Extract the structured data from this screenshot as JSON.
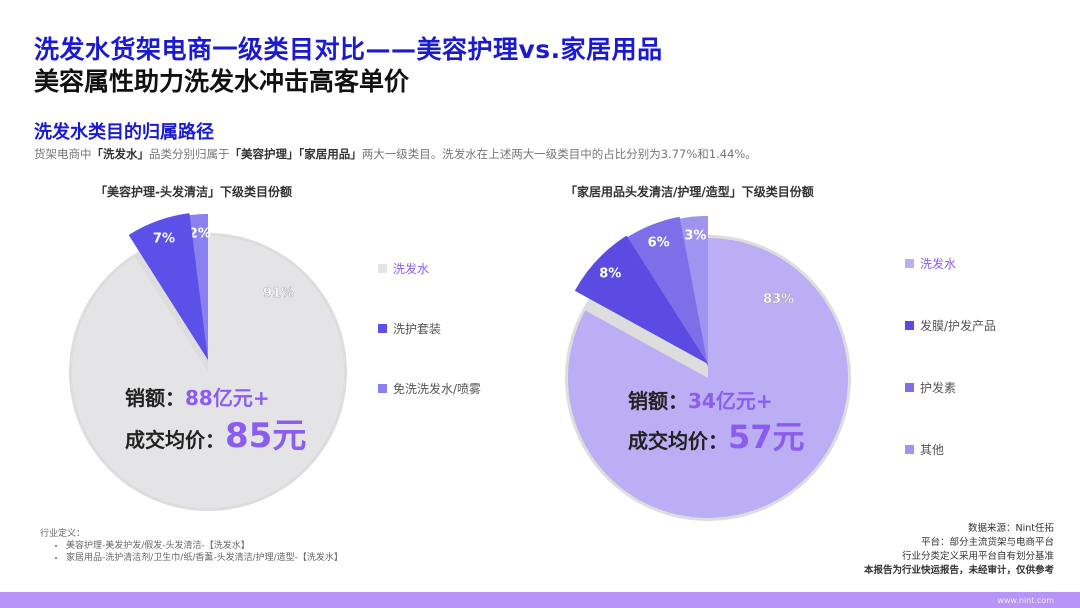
{
  "title": "洗发水货架电商一级类目对比——美容护理vs.家居用品",
  "subtitle": "美容属性助力洗发水冲击高客单价",
  "section_title": "洗发水类目的归属路径",
  "description": {
    "p1": "货架电商中",
    "b1": "「洗发水」",
    "p2": "品类分别归属于",
    "b2": "「美容护理」「家居用品」",
    "p3": "两大一级类目。洗发水在上述两大一级类目中的占比分别为3.77%和1.44%。"
  },
  "chart_data": [
    {
      "type": "pie",
      "title": "「美容护理-头发清洁」下级类目份额",
      "categories": [
        "洗发水",
        "洗护套装",
        "免洗洗发水/喷雾"
      ],
      "values": [
        91,
        7,
        2
      ],
      "labels": [
        "91%",
        "7%",
        "2%"
      ],
      "colors": [
        "#e4e4e6",
        "#5b50e8",
        "#8a80f0"
      ],
      "legend_position": "right",
      "stats": {
        "sales_label": "销额：",
        "sales_value": "88亿元+",
        "price_label": "成交均价：",
        "price_value": "85元"
      }
    },
    {
      "type": "pie",
      "title": "「家居用品头发清洁/护理/造型」下级类目份额",
      "categories": [
        "洗发水",
        "发膜/护发产品",
        "护发素",
        "其他"
      ],
      "values": [
        83,
        8,
        6,
        3
      ],
      "labels": [
        "83%",
        "8%",
        "6%",
        "3%"
      ],
      "colors": [
        "#bcaef4",
        "#5b4be2",
        "#7c6fe8",
        "#9f94f0"
      ],
      "legend_position": "right",
      "stats": {
        "sales_label": "销额：",
        "sales_value": "34亿元+",
        "price_label": "成交均价：",
        "price_value": "57元"
      }
    }
  ],
  "footnote": {
    "heading": "行业定义：",
    "items": [
      "美容护理-美发护发/假发-头发清洁-【洗发水】",
      "家居用品-洗护清洁剂/卫生巾/纸/香薰-头发清洁/护理/造型-【洗发水】"
    ]
  },
  "source": [
    "数据来源：Nint任拓",
    "平台：部分主流货架与电商平台",
    "行业分类定义采用平台自有划分基准",
    "本报告为行业快运报告，未经审计，仅供参考"
  ],
  "url": "www.nint.com"
}
